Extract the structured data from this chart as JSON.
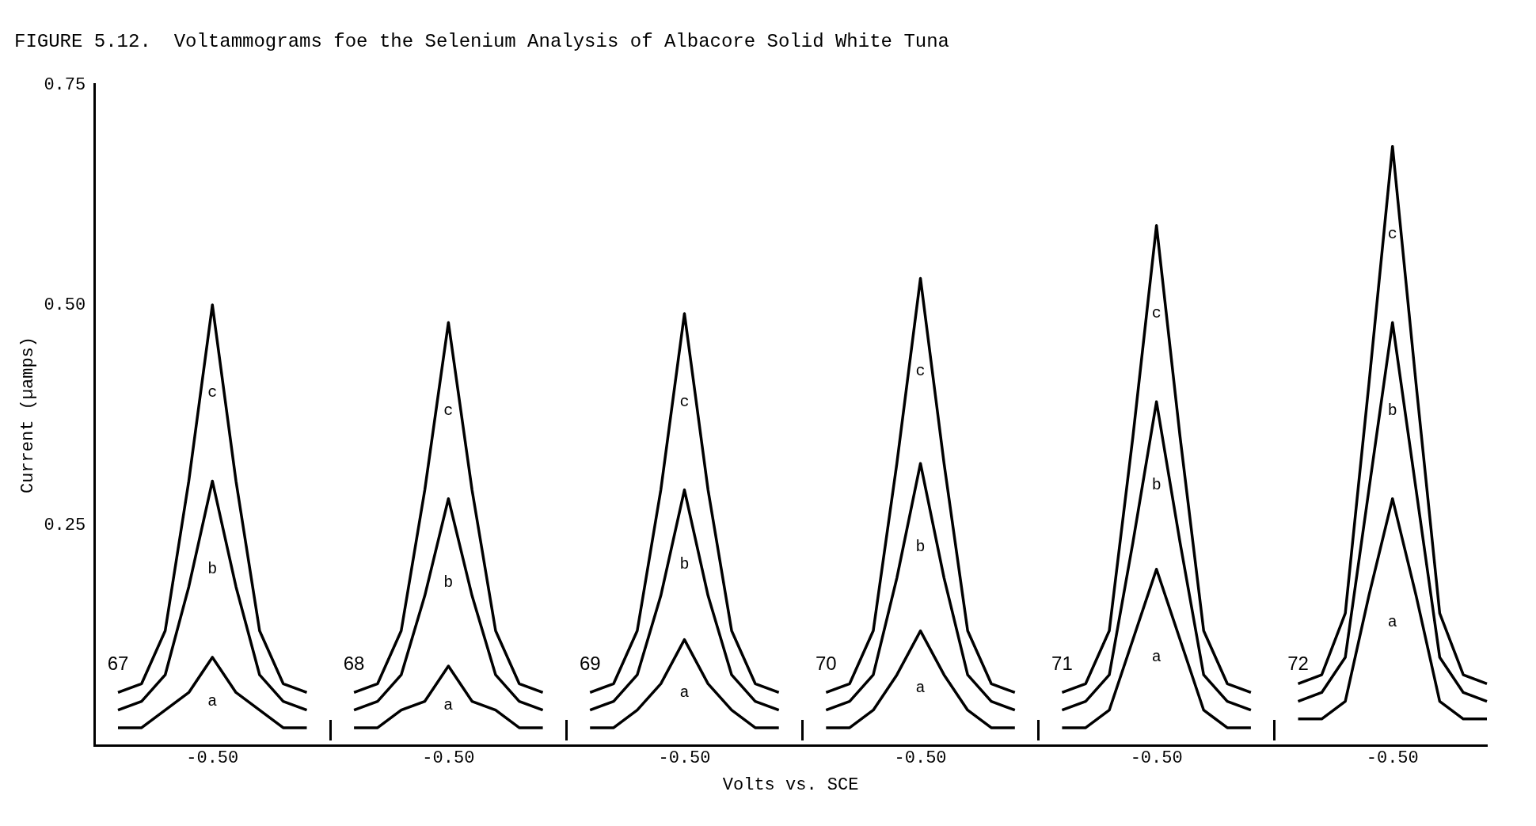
{
  "chart_data": {
    "type": "line",
    "title": "FIGURE 5.12.  Voltammograms foe the Selenium Analysis of Albacore Solid White Tuna",
    "xlabel": "Volts vs. SCE",
    "ylabel": "Current (µamps)",
    "categories": [
      null,
      null,
      null,
      null,
      null,
      "-0.50",
      null,
      null,
      null,
      null,
      null,
      null,
      null,
      null,
      null,
      "-0.50",
      null,
      null,
      null,
      null,
      null,
      null,
      null,
      null,
      null,
      "-0.50",
      null,
      null,
      null,
      null,
      null,
      null,
      null,
      null,
      null,
      "-0.50",
      null,
      null,
      null,
      null,
      null,
      null,
      null,
      null,
      null,
      "-0.50",
      null,
      null,
      null,
      null,
      null,
      null,
      null,
      null,
      null,
      "-0.50",
      null,
      null,
      null,
      null
    ],
    "series": [
      {
        "name": "a",
        "color": "#000000",
        "values": [
          null,
          0.02,
          0.02,
          0.04,
          0.06,
          0.1,
          0.06,
          0.04,
          0.02,
          0.02,
          null,
          0.02,
          0.02,
          0.04,
          0.05,
          0.09,
          0.05,
          0.04,
          0.02,
          0.02,
          null,
          0.02,
          0.02,
          0.04,
          0.07,
          0.12,
          0.07,
          0.04,
          0.02,
          0.02,
          null,
          0.02,
          0.02,
          0.04,
          0.08,
          0.13,
          0.08,
          0.04,
          0.02,
          0.02,
          null,
          0.02,
          0.02,
          0.04,
          0.12,
          0.2,
          0.12,
          0.04,
          0.02,
          0.02,
          null,
          0.03,
          0.03,
          0.05,
          0.17,
          0.28,
          0.17,
          0.05,
          0.03,
          0.03
        ]
      },
      {
        "name": "b",
        "color": "#000000",
        "values": [
          null,
          0.04,
          0.05,
          0.08,
          0.18,
          0.3,
          0.18,
          0.08,
          0.05,
          0.04,
          null,
          0.04,
          0.05,
          0.08,
          0.17,
          0.28,
          0.17,
          0.08,
          0.05,
          0.04,
          null,
          0.04,
          0.05,
          0.08,
          0.17,
          0.29,
          0.17,
          0.08,
          0.05,
          0.04,
          null,
          0.04,
          0.05,
          0.08,
          0.19,
          0.32,
          0.19,
          0.08,
          0.05,
          0.04,
          null,
          0.04,
          0.05,
          0.08,
          0.23,
          0.39,
          0.23,
          0.08,
          0.05,
          0.04,
          null,
          0.05,
          0.06,
          0.1,
          0.29,
          0.48,
          0.29,
          0.1,
          0.06,
          0.05
        ]
      },
      {
        "name": "c",
        "color": "#000000",
        "values": [
          null,
          0.06,
          0.07,
          0.13,
          0.3,
          0.5,
          0.3,
          0.13,
          0.07,
          0.06,
          null,
          0.06,
          0.07,
          0.13,
          0.29,
          0.48,
          0.29,
          0.13,
          0.07,
          0.06,
          null,
          0.06,
          0.07,
          0.13,
          0.29,
          0.49,
          0.29,
          0.13,
          0.07,
          0.06,
          null,
          0.06,
          0.07,
          0.13,
          0.32,
          0.53,
          0.32,
          0.13,
          0.07,
          0.06,
          null,
          0.06,
          0.07,
          0.13,
          0.35,
          0.59,
          0.35,
          0.13,
          0.07,
          0.06,
          null,
          0.07,
          0.08,
          0.15,
          0.41,
          0.68,
          0.41,
          0.15,
          0.08,
          0.07
        ]
      }
    ],
    "ylim": [
      0,
      0.75
    ],
    "yticks": [
      {
        "value": 0.25,
        "label": "0.25"
      },
      {
        "value": 0.5,
        "label": "0.50"
      },
      {
        "value": 0.75,
        "label": "0.75"
      }
    ],
    "legend": false,
    "grid": false,
    "annotations": [
      "67",
      "68",
      "69",
      "70",
      "71",
      "72"
    ]
  }
}
